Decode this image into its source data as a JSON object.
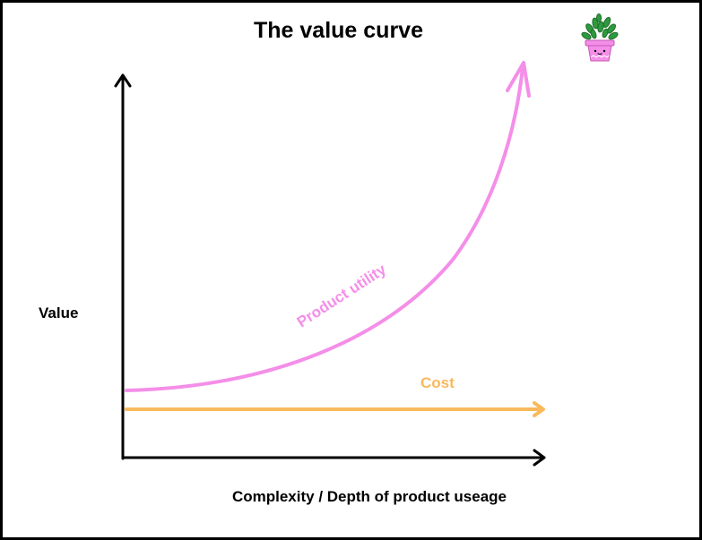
{
  "title": "The value curve",
  "y_axis_label": "Value",
  "x_axis_label": "Complexity / Depth of product useage",
  "curves": {
    "utility": {
      "label": "Product utility",
      "color": "#f48ee8"
    },
    "cost": {
      "label": "Cost",
      "color": "#f9b95c"
    }
  },
  "colors": {
    "axis": "#000000",
    "frame": "#000000",
    "background": "#ffffff",
    "pot": "#f48ee8",
    "leaves": "#2e9a3e"
  },
  "icons": {
    "decoration": "potted-plant-icon"
  }
}
